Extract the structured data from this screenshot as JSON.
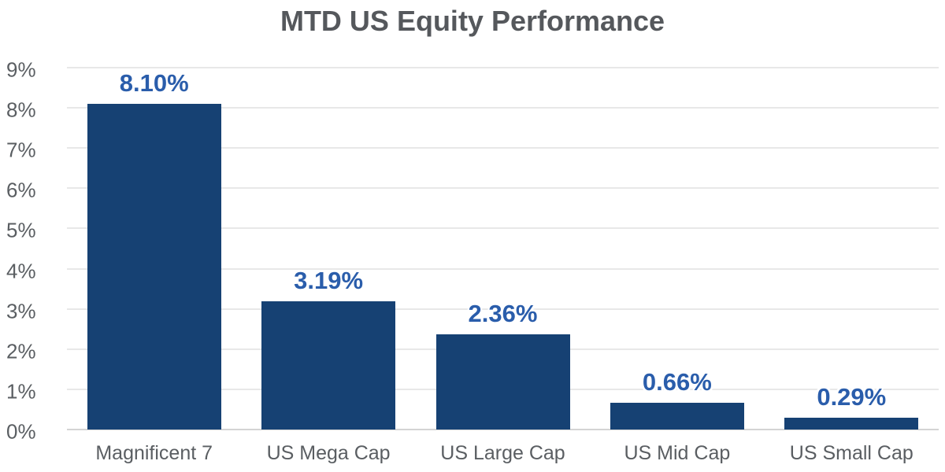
{
  "chart_data": {
    "type": "bar",
    "title": "MTD US Equity Performance",
    "categories": [
      "Magnificent 7",
      "US Mega Cap",
      "US Large Cap",
      "US Mid Cap",
      "US Small Cap"
    ],
    "values": [
      8.1,
      3.19,
      2.36,
      0.66,
      0.29
    ],
    "value_labels": [
      "8.10%",
      "3.19%",
      "2.36%",
      "0.66%",
      "0.29%"
    ],
    "y_ticks": [
      "9%",
      "8%",
      "7%",
      "6%",
      "5%",
      "4%",
      "3%",
      "2%",
      "1%",
      "0%"
    ],
    "ylim": [
      0,
      9
    ],
    "y_step": 1,
    "xlabel": "",
    "ylabel": "",
    "grid": "horizontal-only",
    "legend": "none",
    "colors": {
      "bar_fill": "#164173",
      "value_label": "#2a5dab",
      "title_text": "#55585c",
      "axis_text": "#5a5e62",
      "gridline": "#e8e8e8",
      "baseline": "#d4d4d4",
      "background": "#ffffff"
    }
  }
}
